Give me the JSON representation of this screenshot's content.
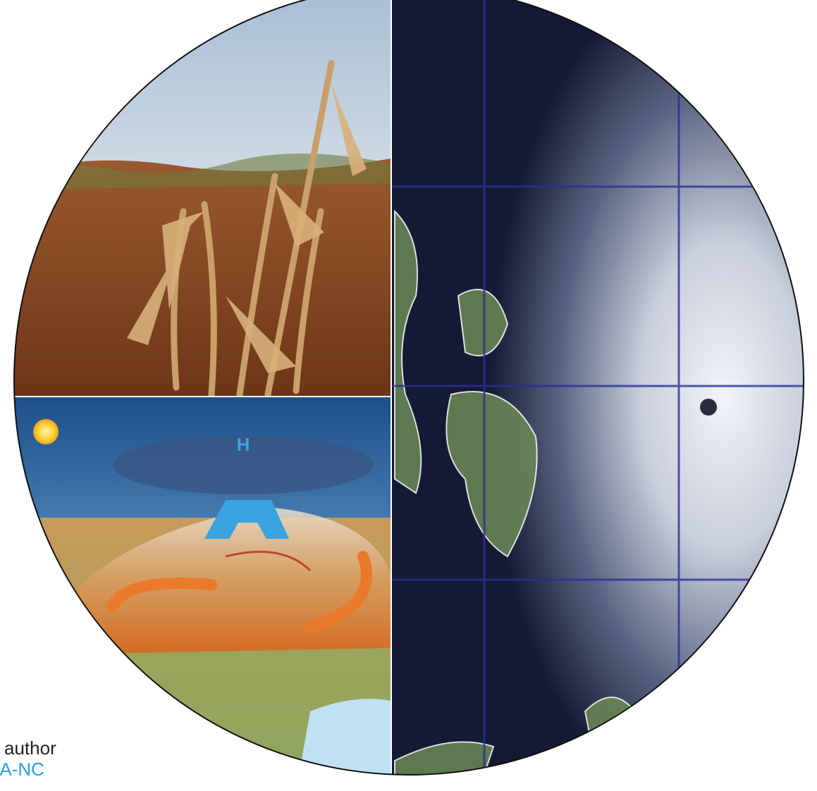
{
  "caption": {
    "line1": "author",
    "line2": "SA-NC"
  },
  "panels": {
    "drought": {
      "icon": "dry-corn-field-photo"
    },
    "heat_dome": {
      "icon": "heat-dome-illustration",
      "pressure_label": "H"
    },
    "satellite": {
      "icon": "typhoon-satellite-image"
    }
  },
  "colors": {
    "sky": "#c9d6e3",
    "soil": "#8a4a24",
    "ocean_night": "#0f1530",
    "cloud": "#dfe3ee",
    "heat_orange": "#e07a2a",
    "high_pressure_blue": "#3aa3e0",
    "caption_link": "#29a3df"
  }
}
